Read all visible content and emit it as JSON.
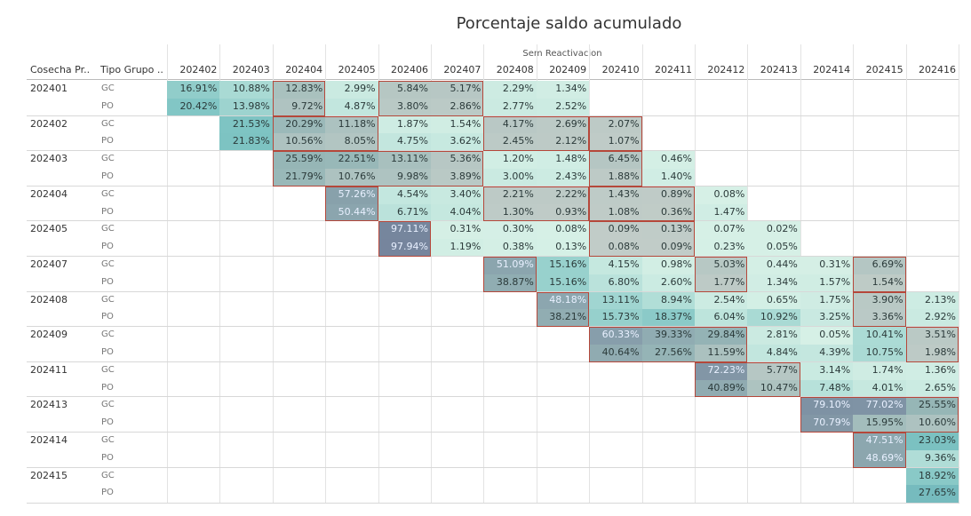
{
  "chart_data": {
    "type": "heatmap",
    "title": "Porcentaje saldo acumulado",
    "column_group_label": "Sem Reactivacion",
    "row_header_1": "Cosecha Pr..",
    "row_header_2": "Tipo Grupo ..",
    "columns": [
      "202402",
      "202403",
      "202404",
      "202405",
      "202406",
      "202407",
      "202408",
      "202409",
      "202410",
      "202411",
      "202412",
      "202413",
      "202414",
      "202415",
      "202416"
    ],
    "rows": [
      {
        "cosecha": "202401",
        "tipo": "GC",
        "values": [
          "16.91%",
          "10.88%",
          "12.83%",
          "2.99%",
          "5.84%",
          "5.17%",
          "2.29%",
          "1.34%",
          null,
          null,
          null,
          null,
          null,
          null,
          null
        ]
      },
      {
        "cosecha": "",
        "tipo": "PO",
        "values": [
          "20.42%",
          "13.98%",
          "9.72%",
          "4.87%",
          "3.80%",
          "2.86%",
          "2.77%",
          "2.52%",
          null,
          null,
          null,
          null,
          null,
          null,
          null
        ]
      },
      {
        "cosecha": "202402",
        "tipo": "GC",
        "values": [
          null,
          "21.53%",
          "20.29%",
          "11.18%",
          "1.87%",
          "1.54%",
          "4.17%",
          "2.69%",
          "2.07%",
          null,
          null,
          null,
          null,
          null,
          null
        ]
      },
      {
        "cosecha": "",
        "tipo": "PO",
        "values": [
          null,
          "21.83%",
          "10.56%",
          "8.05%",
          "4.75%",
          "3.62%",
          "2.45%",
          "2.12%",
          "1.07%",
          null,
          null,
          null,
          null,
          null,
          null
        ]
      },
      {
        "cosecha": "202403",
        "tipo": "GC",
        "values": [
          null,
          null,
          "25.59%",
          "22.51%",
          "13.11%",
          "5.36%",
          "1.20%",
          "1.48%",
          "6.45%",
          "0.46%",
          null,
          null,
          null,
          null,
          null
        ]
      },
      {
        "cosecha": "",
        "tipo": "PO",
        "values": [
          null,
          null,
          "21.79%",
          "10.76%",
          "9.98%",
          "3.89%",
          "3.00%",
          "2.43%",
          "1.88%",
          "1.40%",
          null,
          null,
          null,
          null,
          null
        ]
      },
      {
        "cosecha": "202404",
        "tipo": "GC",
        "values": [
          null,
          null,
          null,
          "57.26%",
          "4.54%",
          "3.40%",
          "2.21%",
          "2.22%",
          "1.43%",
          "0.89%",
          "0.08%",
          null,
          null,
          null,
          null
        ]
      },
      {
        "cosecha": "",
        "tipo": "PO",
        "values": [
          null,
          null,
          null,
          "50.44%",
          "6.71%",
          "4.04%",
          "1.30%",
          "0.93%",
          "1.08%",
          "0.36%",
          "1.47%",
          null,
          null,
          null,
          null
        ]
      },
      {
        "cosecha": "202405",
        "tipo": "GC",
        "values": [
          null,
          null,
          null,
          null,
          "97.11%",
          "0.31%",
          "0.30%",
          "0.08%",
          "0.09%",
          "0.13%",
          "0.07%",
          "0.02%",
          null,
          null,
          null
        ]
      },
      {
        "cosecha": "",
        "tipo": "PO",
        "values": [
          null,
          null,
          null,
          null,
          "97.94%",
          "1.19%",
          "0.38%",
          "0.13%",
          "0.08%",
          "0.09%",
          "0.23%",
          "0.05%",
          null,
          null,
          null
        ]
      },
      {
        "cosecha": "202407",
        "tipo": "GC",
        "values": [
          null,
          null,
          null,
          null,
          null,
          null,
          "51.09%",
          "15.16%",
          "4.15%",
          "0.98%",
          "5.03%",
          "0.44%",
          "0.31%",
          "6.69%",
          null
        ]
      },
      {
        "cosecha": "",
        "tipo": "PO",
        "values": [
          null,
          null,
          null,
          null,
          null,
          null,
          "38.87%",
          "15.16%",
          "6.80%",
          "2.60%",
          "1.77%",
          "1.34%",
          "1.57%",
          "1.54%",
          null
        ]
      },
      {
        "cosecha": "202408",
        "tipo": "GC",
        "values": [
          null,
          null,
          null,
          null,
          null,
          null,
          null,
          "48.18%",
          "13.11%",
          "8.94%",
          "2.54%",
          "0.65%",
          "1.75%",
          "3.90%",
          "2.13%"
        ]
      },
      {
        "cosecha": "",
        "tipo": "PO",
        "values": [
          null,
          null,
          null,
          null,
          null,
          null,
          null,
          "38.21%",
          "15.73%",
          "18.37%",
          "6.04%",
          "10.92%",
          "3.25%",
          "3.36%",
          "2.92%"
        ]
      },
      {
        "cosecha": "202409",
        "tipo": "GC",
        "values": [
          null,
          null,
          null,
          null,
          null,
          null,
          null,
          null,
          "60.33%",
          "39.33%",
          "29.84%",
          "2.81%",
          "0.05%",
          "10.41%",
          "3.51%"
        ]
      },
      {
        "cosecha": "",
        "tipo": "PO",
        "values": [
          null,
          null,
          null,
          null,
          null,
          null,
          null,
          null,
          "40.64%",
          "27.56%",
          "11.59%",
          "4.84%",
          "4.39%",
          "10.75%",
          "1.98%"
        ]
      },
      {
        "cosecha": "202411",
        "tipo": "GC",
        "values": [
          null,
          null,
          null,
          null,
          null,
          null,
          null,
          null,
          null,
          null,
          "72.23%",
          "5.77%",
          "3.14%",
          "1.74%",
          "1.36%"
        ]
      },
      {
        "cosecha": "",
        "tipo": "PO",
        "values": [
          null,
          null,
          null,
          null,
          null,
          null,
          null,
          null,
          null,
          null,
          "40.89%",
          "10.47%",
          "7.48%",
          "4.01%",
          "2.65%"
        ]
      },
      {
        "cosecha": "202413",
        "tipo": "GC",
        "values": [
          null,
          null,
          null,
          null,
          null,
          null,
          null,
          null,
          null,
          null,
          null,
          null,
          "79.10%",
          "77.02%",
          "25.55%"
        ]
      },
      {
        "cosecha": "",
        "tipo": "PO",
        "values": [
          null,
          null,
          null,
          null,
          null,
          null,
          null,
          null,
          null,
          null,
          null,
          null,
          "70.79%",
          "15.95%",
          "10.60%"
        ]
      },
      {
        "cosecha": "202414",
        "tipo": "GC",
        "values": [
          null,
          null,
          null,
          null,
          null,
          null,
          null,
          null,
          null,
          null,
          null,
          null,
          null,
          "47.51%",
          "23.03%"
        ]
      },
      {
        "cosecha": "",
        "tipo": "PO",
        "values": [
          null,
          null,
          null,
          null,
          null,
          null,
          null,
          null,
          null,
          null,
          null,
          null,
          null,
          "48.69%",
          "9.36%"
        ]
      },
      {
        "cosecha": "202415",
        "tipo": "GC",
        "values": [
          null,
          null,
          null,
          null,
          null,
          null,
          null,
          null,
          null,
          null,
          null,
          null,
          null,
          null,
          "18.92%"
        ]
      },
      {
        "cosecha": "",
        "tipo": "PO",
        "values": [
          null,
          null,
          null,
          null,
          null,
          null,
          null,
          null,
          null,
          null,
          null,
          null,
          null,
          null,
          "27.65%"
        ]
      }
    ],
    "highlights": [
      {
        "cosecha": "202401",
        "from": "202404",
        "to": "202404"
      },
      {
        "cosecha": "202401",
        "from": "202406",
        "to": "202407"
      },
      {
        "cosecha": "202402",
        "from": "202404",
        "to": "202405"
      },
      {
        "cosecha": "202402",
        "from": "202408",
        "to": "202409"
      },
      {
        "cosecha": "202402",
        "from": "202410",
        "to": "202410"
      },
      {
        "cosecha": "202403",
        "from": "202404",
        "to": "202407"
      },
      {
        "cosecha": "202403",
        "from": "202410",
        "to": "202410"
      },
      {
        "cosecha": "202404",
        "from": "202405",
        "to": "202405"
      },
      {
        "cosecha": "202404",
        "from": "202408",
        "to": "202409"
      },
      {
        "cosecha": "202404",
        "from": "202410",
        "to": "202411"
      },
      {
        "cosecha": "202405",
        "from": "202406",
        "to": "202406"
      },
      {
        "cosecha": "202405",
        "from": "202410",
        "to": "202411"
      },
      {
        "cosecha": "202407",
        "from": "202408",
        "to": "202408"
      },
      {
        "cosecha": "202407",
        "from": "202412",
        "to": "202412"
      },
      {
        "cosecha": "202407",
        "from": "202415",
        "to": "202415"
      },
      {
        "cosecha": "202408",
        "from": "202409",
        "to": "202409"
      },
      {
        "cosecha": "202408",
        "from": "202415",
        "to": "202415"
      },
      {
        "cosecha": "202409",
        "from": "202410",
        "to": "202412"
      },
      {
        "cosecha": "202409",
        "from": "202416",
        "to": "202416"
      },
      {
        "cosecha": "202411",
        "from": "202412",
        "to": "202413"
      },
      {
        "cosecha": "202413",
        "from": "202414",
        "to": "202416"
      },
      {
        "cosecha": "202414",
        "from": "202415",
        "to": "202415"
      }
    ],
    "color_scale": {
      "low": "#d6f0e6",
      "mid": "#7cc3c2",
      "high": "#2e4f86"
    }
  }
}
